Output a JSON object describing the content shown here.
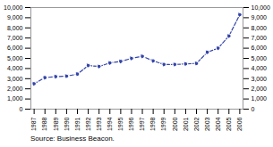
{
  "chart_data": {
    "type": "line",
    "x": [
      1987,
      1988,
      1989,
      1990,
      1991,
      1992,
      1993,
      1994,
      1995,
      1996,
      1997,
      1998,
      1999,
      2000,
      2001,
      2002,
      2003,
      2004,
      2005,
      2006
    ],
    "values": [
      2500,
      3100,
      3200,
      3250,
      3450,
      4300,
      4200,
      4550,
      4700,
      5000,
      5200,
      4750,
      4400,
      4400,
      4450,
      4500,
      5600,
      6000,
      7200,
      9300
    ],
    "color": "#3344aa",
    "line_style": "dashed",
    "marker": "circle",
    "xlim": [
      1986.7,
      2006.3
    ],
    "xticks": [
      1987,
      1988,
      1989,
      1990,
      1991,
      1992,
      1993,
      1994,
      1995,
      1996,
      1997,
      1998,
      1999,
      2000,
      2001,
      2002,
      2003,
      2004,
      2005,
      2006
    ],
    "ylim": [
      0,
      10000
    ],
    "yticks": [
      0,
      {
        "value": 1000,
        "label": "1,000"
      },
      {
        "value": 2000,
        "label": "2,000"
      },
      {
        "value": 3000,
        "label": "3,000"
      },
      {
        "value": 4000,
        "label": "4,000"
      },
      {
        "value": 5000,
        "label": "5,000"
      },
      {
        "value": 6000,
        "label": "6,000"
      },
      {
        "value": 7000,
        "label": "7,000"
      },
      {
        "value": 8000,
        "label": "8,000"
      },
      {
        "value": 9000,
        "label": "9,000"
      },
      {
        "value": 10000,
        "label": "10,000"
      }
    ],
    "y2lim": [
      0,
      10000
    ],
    "y2ticks": [
      0,
      {
        "value": 1000,
        "label": "1,000"
      },
      {
        "value": 2000,
        "label": "2,000"
      },
      {
        "value": 3000,
        "label": "3,000"
      },
      {
        "value": 4000,
        "label": "4,000"
      },
      {
        "value": 5000,
        "label": "5,000"
      },
      {
        "value": 6000,
        "label": "6,000"
      },
      {
        "value": 7000,
        "label": "7,000"
      },
      {
        "value": 8000,
        "label": "8,000"
      },
      {
        "value": 9000,
        "label": "9,000"
      },
      {
        "value": 10000,
        "label": "10,000"
      }
    ],
    "grid": false,
    "annotations": [
      "Source: Business Beacon."
    ]
  }
}
